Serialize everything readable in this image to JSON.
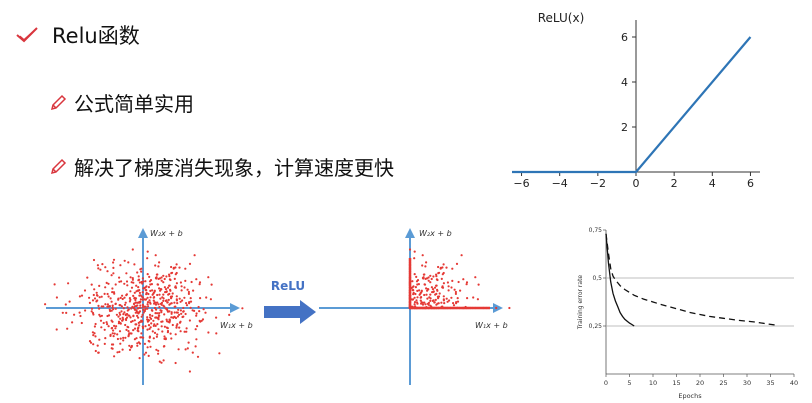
{
  "header": {
    "title": "Relu函数",
    "title_icon": "check-icon"
  },
  "bullets": [
    {
      "icon": "pencil-icon",
      "text": "公式简单实用"
    },
    {
      "icon": "pencil-icon",
      "text": "解决了梯度消失现象，计算速度更快"
    }
  ],
  "colors": {
    "accent_red": "#d9363e",
    "relu_blue": "#2e75b6",
    "arrow_blue": "#4472c4",
    "scatter_red": "#e53935",
    "axis_blue": "#5b9bd5"
  },
  "relu_chart": {
    "chart_data": {
      "type": "line",
      "title": "ReLU(x)",
      "xlabel": "",
      "ylabel": "",
      "xlim": [
        -6.5,
        6.5
      ],
      "ylim": [
        0,
        6.4
      ],
      "x_ticks": [
        -6,
        -4,
        -2,
        0,
        2,
        4,
        6
      ],
      "x_tick_labels": [
        "−6",
        "−4",
        "−2",
        "0",
        "2",
        "4",
        "6"
      ],
      "y_ticks": [
        2,
        4,
        6
      ],
      "y_tick_labels": [
        "2",
        "4",
        "6"
      ],
      "series": [
        {
          "x": [
            -6.5,
            0,
            6
          ],
          "y": [
            0,
            0,
            6
          ]
        }
      ]
    }
  },
  "scatter_panels": {
    "left": {
      "y_label": "W₂x + b",
      "x_label": "W₁x + b"
    },
    "arrow_label": "ReLU",
    "right": {
      "y_label": "W₂x + b",
      "x_label": "W₁x + b"
    }
  },
  "error_chart": {
    "chart_data": {
      "type": "line",
      "title": "",
      "xlabel": "Epochs",
      "ylabel": "Training error rate",
      "xlim": [
        0,
        40
      ],
      "ylim": [
        0,
        0.75
      ],
      "x_ticks": [
        0,
        5,
        10,
        15,
        20,
        25,
        30,
        35,
        40
      ],
      "x_tick_labels": [
        "0",
        "5",
        "10",
        "15",
        "20",
        "25",
        "30",
        "35",
        "40"
      ],
      "y_ticks": [
        0.25,
        0.5,
        0.75
      ],
      "y_tick_labels": [
        "0,25",
        "0,5",
        "0,75"
      ],
      "reference_lines": [
        0.25,
        0.5
      ],
      "series": [
        {
          "style": "solid",
          "x": [
            0,
            0.5,
            1,
            1.5,
            2,
            2.5,
            3,
            3.5,
            4,
            4.5,
            5,
            5.5,
            6
          ],
          "y": [
            0.73,
            0.58,
            0.48,
            0.42,
            0.38,
            0.35,
            0.32,
            0.3,
            0.285,
            0.275,
            0.265,
            0.258,
            0.25
          ]
        },
        {
          "style": "dashed",
          "x": [
            0,
            0.5,
            1,
            1.5,
            2,
            3,
            4,
            5,
            6,
            8,
            10,
            12,
            15,
            18,
            20,
            22,
            25,
            28,
            30,
            32,
            34,
            36
          ],
          "y": [
            0.73,
            0.63,
            0.55,
            0.51,
            0.49,
            0.46,
            0.44,
            0.425,
            0.41,
            0.39,
            0.375,
            0.36,
            0.34,
            0.32,
            0.31,
            0.3,
            0.29,
            0.28,
            0.275,
            0.27,
            0.262,
            0.255
          ]
        }
      ]
    }
  }
}
